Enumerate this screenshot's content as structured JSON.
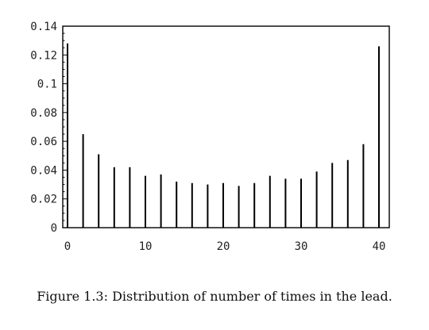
{
  "chart_data": {
    "type": "bar",
    "title": "",
    "xlabel": "",
    "ylabel": "",
    "xlim": [
      0,
      41
    ],
    "ylim": [
      0,
      0.14
    ],
    "x_ticks": [
      0,
      10,
      20,
      30,
      40
    ],
    "x_tick_labels": [
      "0",
      "10",
      "20",
      "30",
      "40"
    ],
    "y_ticks": [
      0,
      0.02,
      0.04,
      0.06,
      0.08,
      0.1,
      0.12,
      0.14
    ],
    "y_tick_labels": [
      "0",
      "0.02",
      "0.04",
      "0.06",
      "0.08",
      "0.1",
      "0.12",
      "0.14"
    ],
    "grid": false,
    "x": [
      0,
      2,
      4,
      6,
      8,
      10,
      12,
      14,
      16,
      18,
      20,
      22,
      24,
      26,
      28,
      30,
      32,
      34,
      36,
      38,
      40
    ],
    "values": [
      0.128,
      0.065,
      0.051,
      0.042,
      0.042,
      0.036,
      0.037,
      0.032,
      0.031,
      0.03,
      0.031,
      0.029,
      0.031,
      0.036,
      0.034,
      0.034,
      0.039,
      0.045,
      0.047,
      0.058,
      0.126
    ]
  },
  "caption": "Figure 1.3: Distribution of number of times in the lead."
}
